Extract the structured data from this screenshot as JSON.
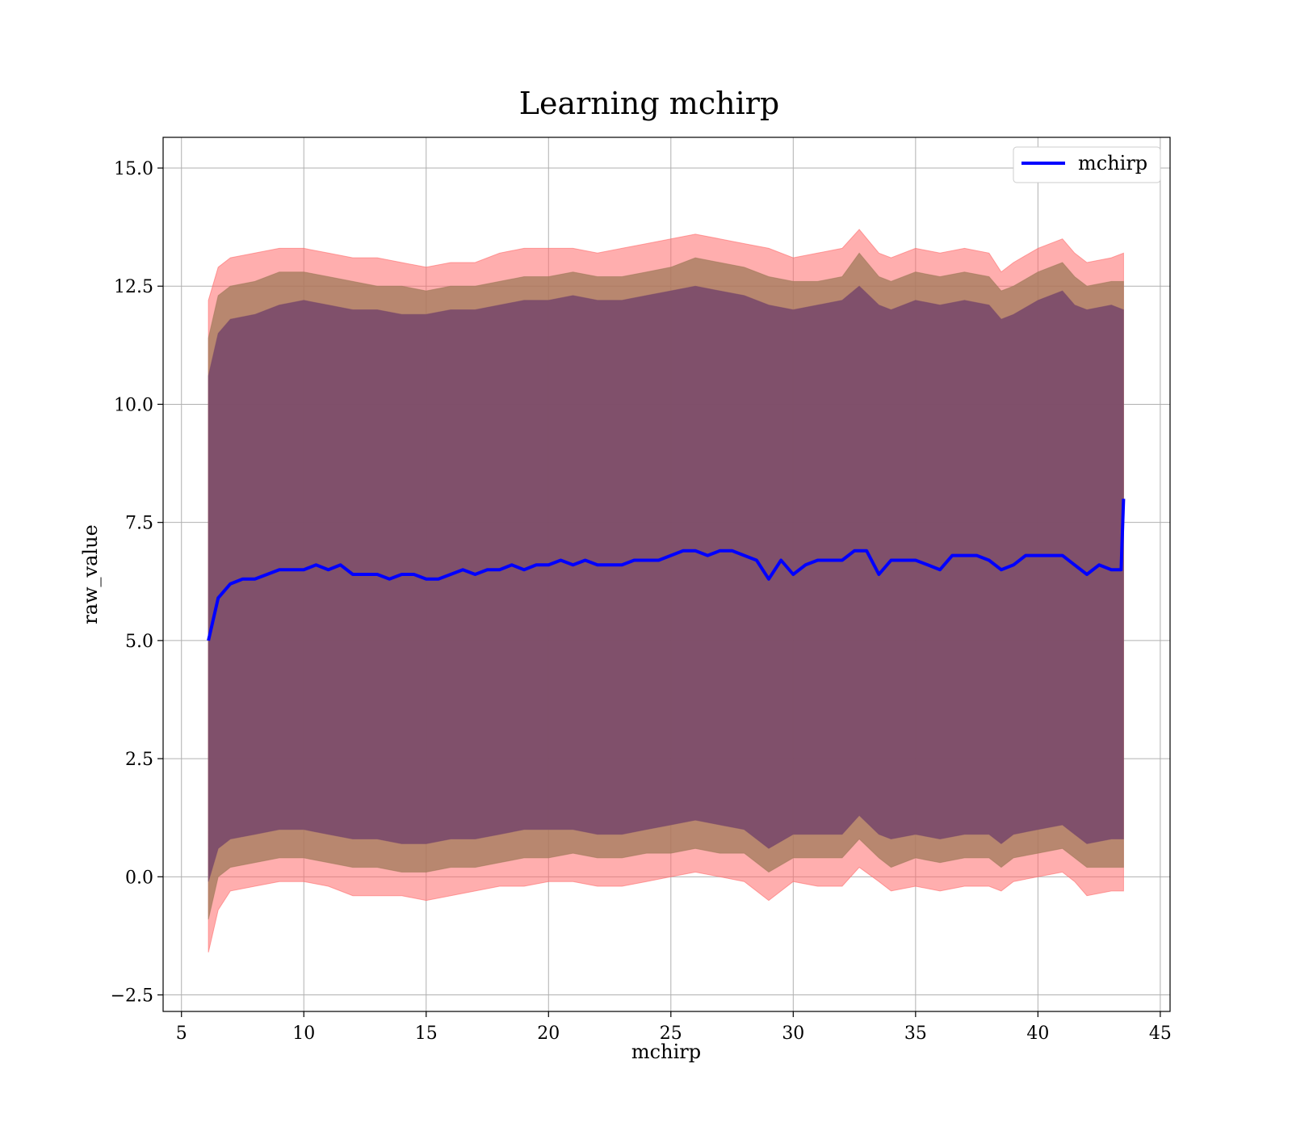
{
  "chart_data": {
    "type": "line",
    "title": "Learning mchirp",
    "xlabel": "mchirp",
    "ylabel": "raw_value",
    "xlim": [
      4.25,
      45.4
    ],
    "ylim": [
      -2.85,
      15.65
    ],
    "xticks": [
      5,
      10,
      15,
      20,
      25,
      30,
      35,
      40,
      45
    ],
    "yticks": [
      -2.5,
      0.0,
      2.5,
      5.0,
      7.5,
      10.0,
      12.5,
      15.0
    ],
    "xtick_labels": [
      "5",
      "10",
      "15",
      "20",
      "25",
      "30",
      "35",
      "40",
      "45"
    ],
    "ytick_labels": [
      "−2.5",
      "0.0",
      "2.5",
      "5.0",
      "7.5",
      "10.0",
      "12.5",
      "15.0"
    ],
    "grid": true,
    "legend": {
      "position": "top-right",
      "entries": [
        "mchirp"
      ]
    },
    "colors": {
      "line": "#0000ff",
      "band_outer": "#ff6b6b",
      "band_mid": "#a07a5a",
      "band_inner": "#7a4a6a",
      "grid": "#b0b0b0"
    },
    "series": [
      {
        "name": "mchirp",
        "x": [
          6.1,
          6.5,
          7.0,
          7.5,
          8.0,
          8.5,
          9.0,
          9.5,
          10.0,
          10.5,
          11.0,
          11.5,
          12.0,
          12.5,
          13.0,
          13.5,
          14.0,
          14.5,
          15.0,
          15.5,
          16.0,
          16.5,
          17.0,
          17.5,
          18.0,
          18.5,
          19.0,
          19.5,
          20.0,
          20.5,
          21.0,
          21.5,
          22.0,
          22.5,
          23.0,
          23.5,
          24.0,
          24.5,
          25.0,
          25.5,
          26.0,
          26.5,
          27.0,
          27.5,
          28.0,
          28.5,
          29.0,
          29.5,
          30.0,
          30.5,
          31.0,
          31.5,
          32.0,
          32.5,
          33.0,
          33.5,
          34.0,
          34.5,
          35.0,
          35.5,
          36.0,
          36.5,
          37.0,
          37.5,
          38.0,
          38.5,
          39.0,
          39.5,
          40.0,
          40.5,
          41.0,
          41.5,
          42.0,
          42.5,
          43.0,
          43.4,
          43.5
        ],
        "y": [
          5.0,
          5.9,
          6.2,
          6.3,
          6.3,
          6.4,
          6.5,
          6.5,
          6.5,
          6.6,
          6.5,
          6.6,
          6.4,
          6.4,
          6.4,
          6.3,
          6.4,
          6.4,
          6.3,
          6.3,
          6.4,
          6.5,
          6.4,
          6.5,
          6.5,
          6.6,
          6.5,
          6.6,
          6.6,
          6.7,
          6.6,
          6.7,
          6.6,
          6.6,
          6.6,
          6.7,
          6.7,
          6.7,
          6.8,
          6.9,
          6.9,
          6.8,
          6.9,
          6.9,
          6.8,
          6.7,
          6.3,
          6.7,
          6.4,
          6.6,
          6.7,
          6.7,
          6.7,
          6.9,
          6.9,
          6.4,
          6.7,
          6.7,
          6.7,
          6.6,
          6.5,
          6.8,
          6.8,
          6.8,
          6.7,
          6.5,
          6.6,
          6.8,
          6.8,
          6.8,
          6.8,
          6.6,
          6.4,
          6.6,
          6.5,
          6.5,
          8.0
        ]
      }
    ],
    "bands": [
      {
        "x": [
          6.1,
          6.5,
          7.0,
          8.0,
          9.0,
          10.0,
          11.0,
          12.0,
          13.0,
          14.0,
          15.0,
          16.0,
          17.0,
          18.0,
          19.0,
          20.0,
          21.0,
          22.0,
          23.0,
          24.0,
          25.0,
          26.0,
          27.0,
          28.0,
          29.0,
          30.0,
          31.0,
          32.0,
          32.7,
          33.5,
          34.0,
          35.0,
          36.0,
          37.0,
          38.0,
          38.5,
          39.0,
          40.0,
          41.0,
          41.5,
          42.0,
          43.0,
          43.5
        ],
        "upper": [
          12.2,
          12.9,
          13.1,
          13.2,
          13.3,
          13.3,
          13.2,
          13.1,
          13.1,
          13.0,
          12.9,
          13.0,
          13.0,
          13.2,
          13.3,
          13.3,
          13.3,
          13.2,
          13.3,
          13.4,
          13.5,
          13.6,
          13.5,
          13.4,
          13.3,
          13.1,
          13.2,
          13.3,
          13.7,
          13.2,
          13.1,
          13.3,
          13.2,
          13.3,
          13.2,
          12.8,
          13.0,
          13.3,
          13.5,
          13.2,
          13.0,
          13.1,
          13.2
        ],
        "lower": [
          -1.6,
          -0.7,
          -0.3,
          -0.2,
          -0.1,
          -0.1,
          -0.2,
          -0.4,
          -0.4,
          -0.4,
          -0.5,
          -0.4,
          -0.3,
          -0.2,
          -0.2,
          -0.1,
          -0.1,
          -0.2,
          -0.2,
          -0.1,
          0.0,
          0.1,
          0.0,
          -0.1,
          -0.5,
          -0.1,
          -0.2,
          -0.2,
          0.2,
          -0.1,
          -0.3,
          -0.2,
          -0.3,
          -0.2,
          -0.2,
          -0.3,
          -0.1,
          0.0,
          0.1,
          -0.1,
          -0.4,
          -0.3,
          -0.3
        ]
      },
      {
        "x": [
          6.1,
          6.5,
          7.0,
          8.0,
          9.0,
          10.0,
          11.0,
          12.0,
          13.0,
          14.0,
          15.0,
          16.0,
          17.0,
          18.0,
          19.0,
          20.0,
          21.0,
          22.0,
          23.0,
          24.0,
          25.0,
          26.0,
          27.0,
          28.0,
          29.0,
          30.0,
          31.0,
          32.0,
          32.7,
          33.5,
          34.0,
          35.0,
          36.0,
          37.0,
          38.0,
          38.5,
          39.0,
          40.0,
          41.0,
          41.5,
          42.0,
          43.0,
          43.5
        ],
        "upper": [
          11.4,
          12.3,
          12.5,
          12.6,
          12.8,
          12.8,
          12.7,
          12.6,
          12.5,
          12.5,
          12.4,
          12.5,
          12.5,
          12.6,
          12.7,
          12.7,
          12.8,
          12.7,
          12.7,
          12.8,
          12.9,
          13.1,
          13.0,
          12.9,
          12.7,
          12.6,
          12.6,
          12.7,
          13.2,
          12.7,
          12.6,
          12.8,
          12.7,
          12.8,
          12.7,
          12.4,
          12.5,
          12.8,
          13.0,
          12.7,
          12.5,
          12.6,
          12.6
        ],
        "lower": [
          -0.9,
          0.0,
          0.2,
          0.3,
          0.4,
          0.4,
          0.3,
          0.2,
          0.2,
          0.1,
          0.1,
          0.2,
          0.2,
          0.3,
          0.4,
          0.4,
          0.5,
          0.4,
          0.4,
          0.5,
          0.5,
          0.6,
          0.5,
          0.5,
          0.1,
          0.4,
          0.4,
          0.4,
          0.8,
          0.4,
          0.2,
          0.4,
          0.3,
          0.4,
          0.4,
          0.2,
          0.4,
          0.5,
          0.6,
          0.4,
          0.2,
          0.2,
          0.2
        ]
      },
      {
        "x": [
          6.1,
          6.5,
          7.0,
          8.0,
          9.0,
          10.0,
          11.0,
          12.0,
          13.0,
          14.0,
          15.0,
          16.0,
          17.0,
          18.0,
          19.0,
          20.0,
          21.0,
          22.0,
          23.0,
          24.0,
          25.0,
          26.0,
          27.0,
          28.0,
          29.0,
          30.0,
          31.0,
          32.0,
          32.7,
          33.5,
          34.0,
          35.0,
          36.0,
          37.0,
          38.0,
          38.5,
          39.0,
          40.0,
          41.0,
          41.5,
          42.0,
          43.0,
          43.5
        ],
        "upper": [
          10.6,
          11.5,
          11.8,
          11.9,
          12.1,
          12.2,
          12.1,
          12.0,
          12.0,
          11.9,
          11.9,
          12.0,
          12.0,
          12.1,
          12.2,
          12.2,
          12.3,
          12.2,
          12.2,
          12.3,
          12.4,
          12.5,
          12.4,
          12.3,
          12.1,
          12.0,
          12.1,
          12.2,
          12.5,
          12.1,
          12.0,
          12.2,
          12.1,
          12.2,
          12.1,
          11.8,
          11.9,
          12.2,
          12.4,
          12.1,
          12.0,
          12.1,
          12.0
        ],
        "lower": [
          -0.1,
          0.6,
          0.8,
          0.9,
          1.0,
          1.0,
          0.9,
          0.8,
          0.8,
          0.7,
          0.7,
          0.8,
          0.8,
          0.9,
          1.0,
          1.0,
          1.0,
          0.9,
          0.9,
          1.0,
          1.1,
          1.2,
          1.1,
          1.0,
          0.6,
          0.9,
          0.9,
          0.9,
          1.3,
          0.9,
          0.8,
          0.9,
          0.8,
          0.9,
          0.9,
          0.7,
          0.9,
          1.0,
          1.1,
          0.9,
          0.7,
          0.8,
          0.8
        ]
      }
    ]
  }
}
